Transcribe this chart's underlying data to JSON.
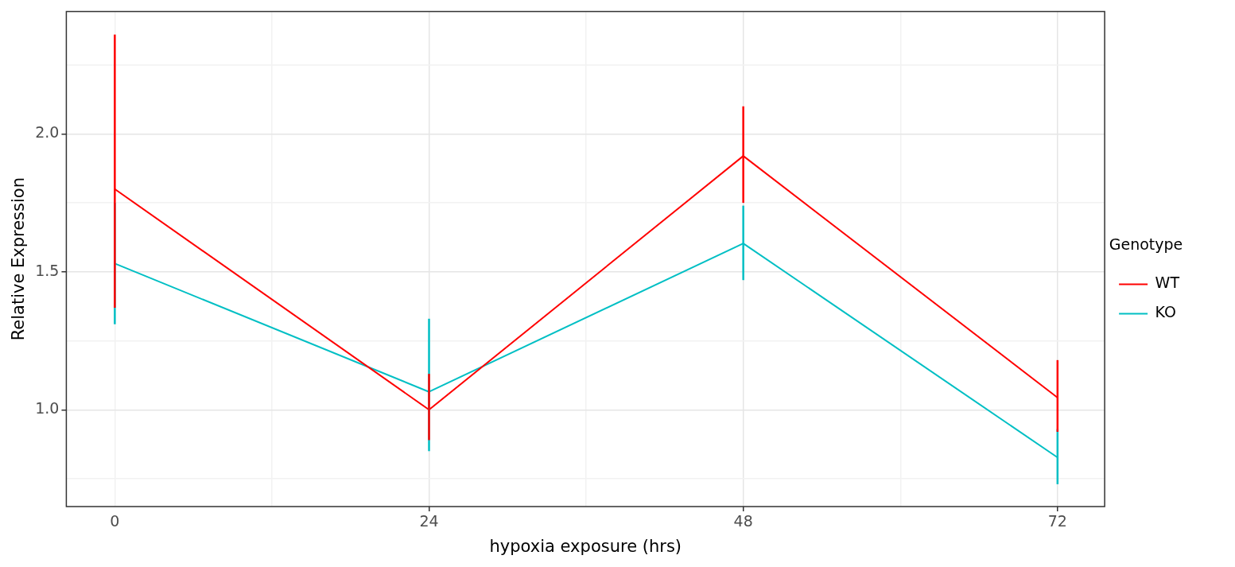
{
  "chart_data": {
    "type": "line",
    "xlabel": "hypoxia exposure (hrs)",
    "ylabel": "Relative Expression",
    "legend_title": "Genotype",
    "legend": "right",
    "grid": true,
    "marker": "none",
    "line_style": "solid",
    "x": [
      0,
      24,
      48,
      72
    ],
    "xlim": [
      -3.7,
      75.6
    ],
    "xticks": [
      0,
      {
        "value": 12,
        "label": null
      },
      24,
      {
        "value": 36,
        "label": null
      },
      48,
      {
        "value": 60,
        "label": null
      },
      72
    ],
    "ylim": [
      0.649,
      2.444
    ],
    "yticks": [
      {
        "value": 0.75,
        "label": null
      },
      {
        "value": 1.0,
        "label": "1.0"
      },
      {
        "value": 1.25,
        "label": null
      },
      {
        "value": 1.5,
        "label": "1.5"
      },
      {
        "value": 1.75,
        "label": null
      },
      {
        "value": 2.0,
        "label": "2.0"
      },
      {
        "value": 2.25,
        "label": null
      }
    ],
    "series": [
      {
        "name": "WT",
        "color": "#ff0000",
        "values": [
          1.8,
          1.0,
          1.92,
          1.044
        ],
        "errors": [
          [
            1.37,
            2.36
          ],
          [
            0.89,
            1.13
          ],
          [
            1.75,
            2.1
          ],
          [
            0.92,
            1.18
          ]
        ]
      },
      {
        "name": "KO",
        "color": "#00bfc4",
        "values": [
          1.53,
          1.065,
          1.603,
          0.827
        ],
        "errors": [
          [
            1.31,
            1.75
          ],
          [
            0.85,
            1.33
          ],
          [
            1.47,
            1.74
          ],
          [
            0.73,
            0.93
          ]
        ]
      }
    ]
  }
}
